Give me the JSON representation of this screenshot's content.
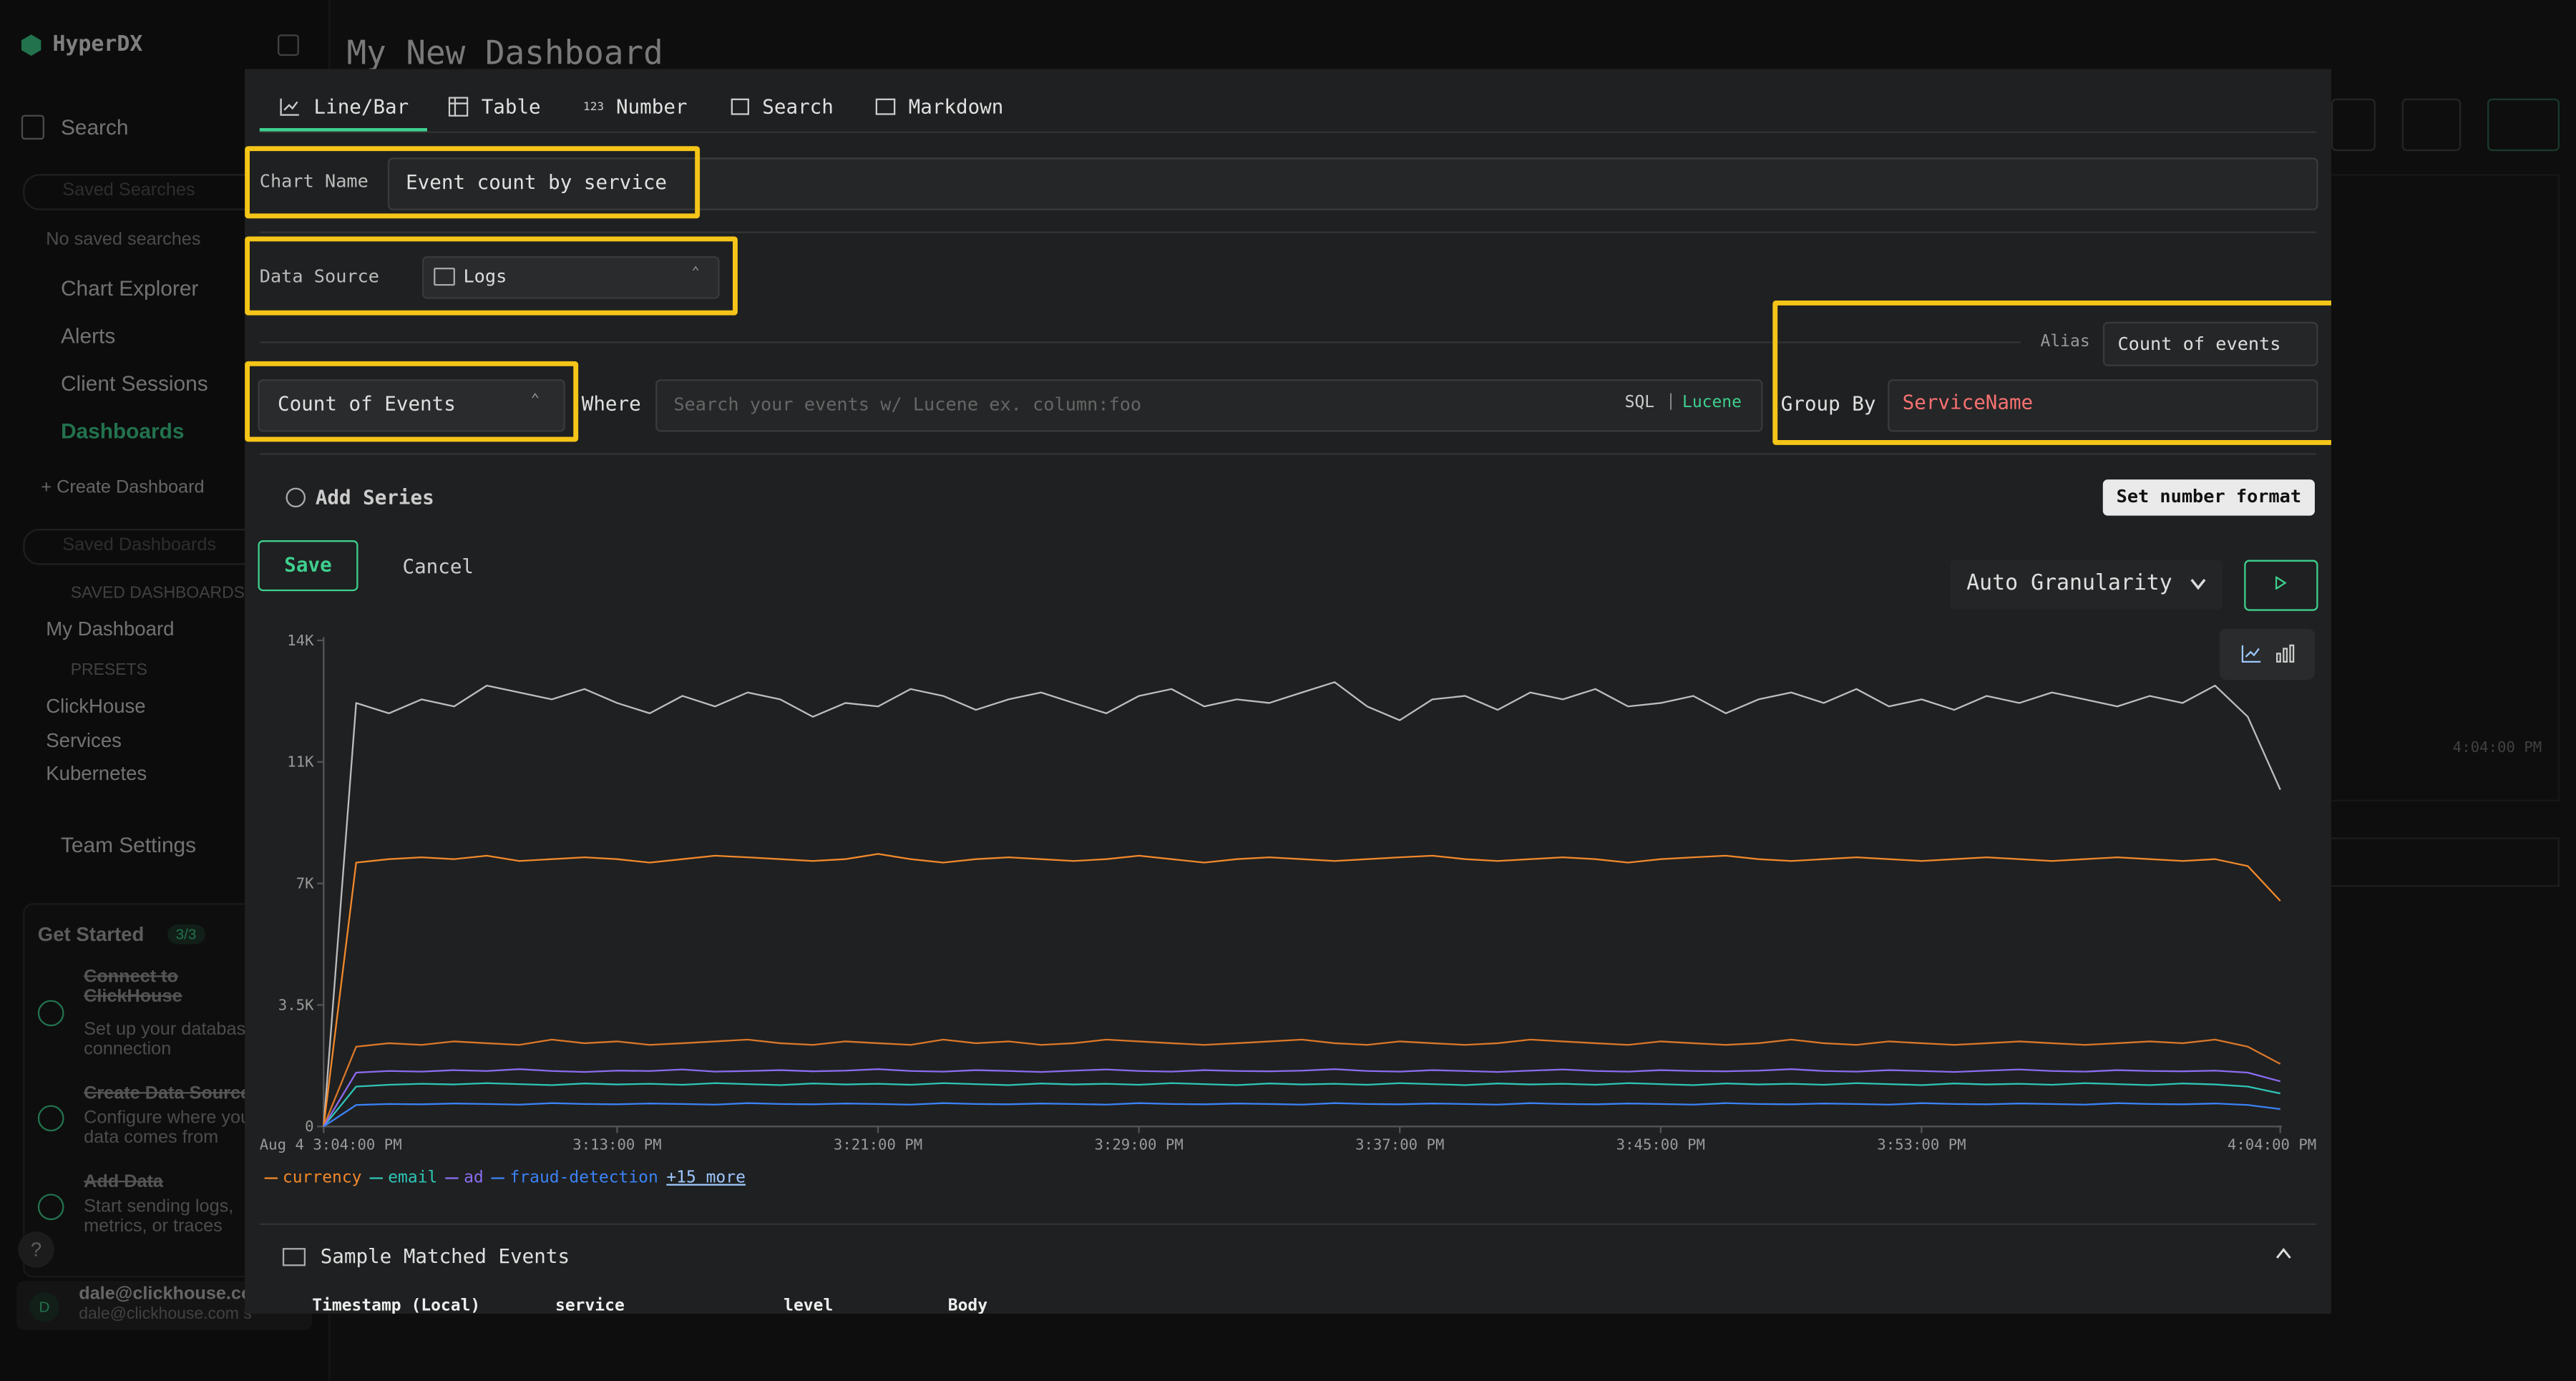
{
  "sidebar": {
    "brand": "HyperDX",
    "search": "Search",
    "saved_searches_placeholder": "Saved Searches",
    "no_saved_searches": "No saved searches",
    "nav": [
      "Chart Explorer",
      "Alerts",
      "Client Sessions",
      "Dashboards"
    ],
    "create_dashboard": "Create Dashboard",
    "saved_dashboards_placeholder": "Saved Dashboards",
    "saved_dashboards_heading": "SAVED DASHBOARDS",
    "saved_dashboards": [
      "My Dashboard"
    ],
    "presets_heading": "PRESETS",
    "presets": [
      "ClickHouse",
      "Services",
      "Kubernetes"
    ],
    "team_settings": "Team Settings",
    "get_started": {
      "title": "Get Started",
      "progress": "3/3",
      "steps": [
        {
          "title": "Connect to ClickHouse",
          "desc": "Set up your database connection"
        },
        {
          "title": "Create Data Source",
          "desc": "Configure where your data comes from"
        },
        {
          "title": "Add Data",
          "desc": "Start sending logs, metrics, or traces"
        }
      ]
    },
    "help": "?",
    "user": {
      "initial": "D",
      "email": "dale@clickhouse.com",
      "subtitle": "dale@clickhouse.com s"
    }
  },
  "header": {
    "title": "My New Dashboard",
    "background_tick": "4:04:00 PM"
  },
  "editor": {
    "tabs": [
      "Line/Bar",
      "Table",
      "Number",
      "Search",
      "Markdown"
    ],
    "number_icon": "123",
    "chart_name_label": "Chart Name",
    "chart_name": "Event count by service",
    "data_source_label": "Data Source",
    "data_source": "Logs",
    "alias_label": "Alias",
    "alias": "Count of events",
    "aggregation": "Count of Events",
    "where_label": "Where",
    "where_placeholder": "Search your events w/ Lucene ex. column:foo",
    "sql": "SQL",
    "separator": "|",
    "lucene": "Lucene",
    "group_by_label": "Group By",
    "group_by": "ServiceName",
    "add_series": "Add Series",
    "set_number_format": "Set number format",
    "save": "Save",
    "cancel": "Cancel",
    "granularity": "Auto Granularity",
    "sample_events_title": "Sample Matched Events",
    "table_headers": [
      "Timestamp (Local)",
      "service",
      "level",
      "Body"
    ]
  },
  "chart_data": {
    "type": "line",
    "grid": false,
    "legend_more": "+15 more",
    "categories": [
      "Aug 4 3:04:00 PM",
      null,
      null,
      null,
      null,
      null,
      null,
      null,
      null,
      "3:13:00 PM",
      null,
      null,
      null,
      null,
      null,
      null,
      null,
      "3:21:00 PM",
      null,
      null,
      null,
      null,
      null,
      null,
      null,
      "3:29:00 PM",
      null,
      null,
      null,
      null,
      null,
      null,
      null,
      "3:37:00 PM",
      null,
      null,
      null,
      null,
      null,
      null,
      null,
      "3:45:00 PM",
      null,
      null,
      null,
      null,
      null,
      null,
      null,
      "3:53:00 PM",
      null,
      null,
      null,
      null,
      null,
      null,
      null,
      null,
      null,
      null,
      "4:04:00 PM"
    ],
    "ylim": [
      0,
      14000
    ],
    "yticks": [
      0,
      {
        "value": 3500,
        "label": "3.5K"
      },
      {
        "value": 7000,
        "label": "7K"
      },
      {
        "value": 10500,
        "label": "11K"
      },
      {
        "value": 14000,
        "label": "14K"
      }
    ],
    "series": [
      {
        "color": "#bdbdbd",
        "values": [
          0,
          12200,
          11900,
          12300,
          12100,
          12700,
          12500,
          12300,
          12600,
          12200,
          11900,
          12400,
          12100,
          12500,
          12300,
          11800,
          12200,
          12100,
          12600,
          12400,
          12000,
          12300,
          12500,
          12200,
          11900,
          12400,
          12600,
          12100,
          12300,
          12200,
          12500,
          12800,
          12100,
          11700,
          12300,
          12400,
          12000,
          12500,
          12300,
          12600,
          12100,
          12200,
          12400,
          11900,
          12300,
          12500,
          12200,
          12600,
          12100,
          12300,
          12000,
          12400,
          12200,
          12500,
          12300,
          12100,
          12400,
          12200,
          12700,
          11800,
          9700
        ]
      },
      {
        "name": "currency",
        "color": "#f0892c",
        "values": [
          0,
          7600,
          7700,
          7750,
          7700,
          7800,
          7650,
          7700,
          7750,
          7700,
          7600,
          7700,
          7800,
          7750,
          7700,
          7650,
          7700,
          7850,
          7700,
          7600,
          7700,
          7750,
          7700,
          7650,
          7700,
          7800,
          7700,
          7600,
          7700,
          7750,
          7700,
          7650,
          7700,
          7750,
          7800,
          7700,
          7650,
          7700,
          7750,
          7700,
          7600,
          7700,
          7750,
          7800,
          7700,
          7650,
          7700,
          7750,
          7700,
          7650,
          7700,
          7750,
          7700,
          7650,
          7700,
          7750,
          7700,
          7650,
          7700,
          7500,
          6500
        ]
      },
      {
        "color": "#d9772a",
        "values": [
          0,
          2300,
          2400,
          2350,
          2450,
          2400,
          2350,
          2500,
          2400,
          2450,
          2350,
          2400,
          2450,
          2500,
          2400,
          2350,
          2450,
          2400,
          2350,
          2500,
          2400,
          2450,
          2350,
          2400,
          2500,
          2450,
          2400,
          2350,
          2400,
          2450,
          2500,
          2400,
          2350,
          2450,
          2400,
          2350,
          2400,
          2500,
          2450,
          2400,
          2350,
          2450,
          2400,
          2350,
          2400,
          2500,
          2400,
          2350,
          2450,
          2400,
          2350,
          2400,
          2450,
          2400,
          2350,
          2400,
          2450,
          2400,
          2500,
          2300,
          1800
        ]
      },
      {
        "name": "email",
        "color": "#2ec4b6",
        "values": [
          0,
          1150,
          1200,
          1230,
          1210,
          1250,
          1220,
          1190,
          1240,
          1210,
          1230,
          1200,
          1250,
          1220,
          1190,
          1240,
          1210,
          1230,
          1200,
          1250,
          1220,
          1190,
          1240,
          1210,
          1230,
          1200,
          1250,
          1220,
          1190,
          1240,
          1210,
          1230,
          1200,
          1250,
          1220,
          1190,
          1240,
          1210,
          1230,
          1200,
          1250,
          1220,
          1190,
          1240,
          1210,
          1230,
          1200,
          1250,
          1220,
          1190,
          1240,
          1210,
          1230,
          1200,
          1250,
          1220,
          1190,
          1240,
          1210,
          1150,
          950
        ]
      },
      {
        "name": "ad",
        "color": "#8b6cf0",
        "values": [
          0,
          1550,
          1600,
          1580,
          1620,
          1600,
          1650,
          1600,
          1570,
          1610,
          1600,
          1640,
          1580,
          1600,
          1620,
          1590,
          1610,
          1650,
          1600,
          1580,
          1620,
          1600,
          1570,
          1610,
          1640,
          1600,
          1580,
          1620,
          1600,
          1590,
          1610,
          1650,
          1600,
          1580,
          1620,
          1600,
          1570,
          1610,
          1640,
          1600,
          1580,
          1620,
          1600,
          1590,
          1610,
          1650,
          1600,
          1580,
          1620,
          1600,
          1570,
          1610,
          1640,
          1600,
          1580,
          1620,
          1600,
          1590,
          1610,
          1550,
          1300
        ]
      },
      {
        "name": "fraud-detection",
        "color": "#3b82f6",
        "values": [
          0,
          620,
          650,
          640,
          660,
          650,
          630,
          670,
          650,
          640,
          660,
          650,
          630,
          670,
          650,
          640,
          660,
          650,
          630,
          670,
          650,
          640,
          660,
          650,
          630,
          670,
          650,
          640,
          660,
          650,
          630,
          670,
          650,
          640,
          660,
          650,
          630,
          670,
          650,
          640,
          660,
          650,
          630,
          670,
          650,
          640,
          660,
          650,
          630,
          670,
          650,
          640,
          660,
          650,
          630,
          670,
          650,
          640,
          660,
          620,
          500
        ]
      }
    ]
  }
}
